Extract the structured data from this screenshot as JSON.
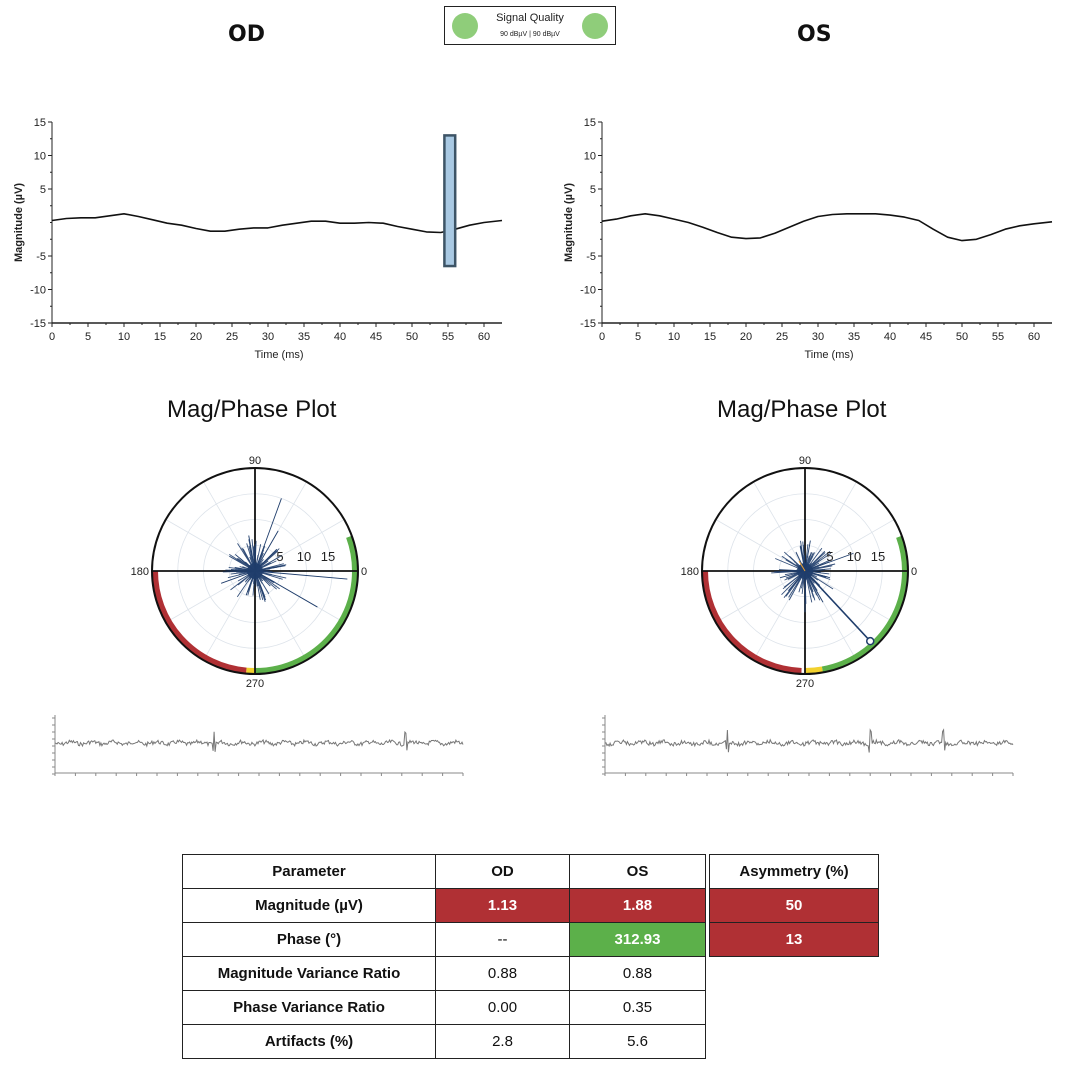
{
  "header": {
    "od_label": "OD",
    "os_label": "OS",
    "signal_quality": {
      "title": "Signal Quality",
      "values": "90 dBµV  |  90 dBµV",
      "indicator_color": "#8fcd7a"
    }
  },
  "mag_phase_title": "Mag/Phase Plot",
  "colors": {
    "red": "#b03034",
    "green": "#5cb04a",
    "yellow": "#f2d12e",
    "trace": "#1f3d6b"
  },
  "chart_data": [
    {
      "id": "od-waveform",
      "type": "line",
      "xlabel": "Time (ms)",
      "ylabel": "Magnitude (µV)",
      "xlim": [
        0,
        62.5
      ],
      "ylim": [
        -15,
        15
      ],
      "xticks": [
        "0",
        "5",
        "10",
        "15",
        "20",
        "25",
        "30",
        "35",
        "40",
        "45",
        "50",
        "55",
        "60"
      ],
      "yticks": [
        "15",
        "10",
        "5",
        "-5",
        "-10",
        "-15"
      ],
      "x": [
        0,
        2,
        4,
        6,
        8,
        10,
        12,
        14,
        16,
        18,
        20,
        22,
        24,
        26,
        28,
        30,
        32,
        34,
        36,
        38,
        40,
        42,
        44,
        46,
        48,
        50,
        52,
        54,
        56,
        58,
        60,
        62.5
      ],
      "y": [
        0.3,
        0.6,
        0.7,
        0.7,
        1.0,
        1.3,
        0.9,
        0.4,
        -0.1,
        -0.4,
        -0.9,
        -1.3,
        -1.3,
        -1.0,
        -0.8,
        -0.8,
        -0.4,
        -0.1,
        0.2,
        0.2,
        -0.1,
        -0.1,
        0.0,
        -0.1,
        -0.6,
        -1.0,
        -1.4,
        -1.5,
        -1.0,
        -0.4,
        0.0,
        0.3
      ],
      "marker": {
        "type": "band",
        "x": [
          54.5,
          56
        ],
        "y": [
          -6.5,
          13
        ]
      }
    },
    {
      "id": "os-waveform",
      "type": "line",
      "xlabel": "Time (ms)",
      "ylabel": "Magnitude (µV)",
      "xlim": [
        0,
        62.5
      ],
      "ylim": [
        -15,
        15
      ],
      "xticks": [
        "0",
        "5",
        "10",
        "15",
        "20",
        "25",
        "30",
        "35",
        "40",
        "45",
        "50",
        "55",
        "60"
      ],
      "yticks": [
        "15",
        "10",
        "5",
        "-5",
        "-10",
        "-15"
      ],
      "x": [
        0,
        2,
        4,
        6,
        8,
        10,
        12,
        14,
        16,
        18,
        20,
        22,
        24,
        26,
        28,
        30,
        32,
        34,
        36,
        38,
        40,
        42,
        44,
        46,
        48,
        50,
        52,
        54,
        56,
        58,
        60,
        62.5
      ],
      "y": [
        0.2,
        0.5,
        1.0,
        1.3,
        1.0,
        0.5,
        0.0,
        -0.7,
        -1.5,
        -2.2,
        -2.4,
        -2.3,
        -1.6,
        -0.7,
        0.2,
        0.9,
        1.2,
        1.3,
        1.3,
        1.3,
        1.1,
        0.8,
        0.3,
        -1.0,
        -2.2,
        -2.7,
        -2.5,
        -1.8,
        -1.0,
        -0.5,
        -0.2,
        0.1
      ]
    },
    {
      "id": "od-polar",
      "type": "polar",
      "title": "Mag/Phase Plot",
      "angle_labels": [
        "90",
        "180",
        "0",
        "270"
      ],
      "radial_labels": [
        "5",
        "10",
        "15"
      ],
      "rmax": 20,
      "arcs": [
        {
          "color": "green",
          "from_deg": -90,
          "to_deg": 20
        },
        {
          "color": "yellow",
          "from_deg": -95,
          "to_deg": -90
        },
        {
          "color": "red",
          "from_deg": 180,
          "to_deg": 265
        }
      ],
      "spikes_deg_mag": [
        [
          70,
          15
        ],
        [
          355,
          18
        ],
        [
          330,
          14
        ],
        [
          60,
          9
        ],
        [
          100,
          7
        ],
        [
          290,
          6
        ],
        [
          10,
          6
        ],
        [
          200,
          7
        ],
        [
          250,
          5
        ],
        [
          140,
          5
        ],
        [
          45,
          6
        ],
        [
          170,
          4
        ]
      ]
    },
    {
      "id": "os-polar",
      "type": "polar",
      "title": "Mag/Phase Plot",
      "angle_labels": [
        "90",
        "180",
        "0",
        "270"
      ],
      "radial_labels": [
        "5",
        "10",
        "15"
      ],
      "rmax": 20,
      "arcs": [
        {
          "color": "green",
          "from_deg": -80,
          "to_deg": 20
        },
        {
          "color": "yellow",
          "from_deg": -90,
          "to_deg": -80
        },
        {
          "color": "red",
          "from_deg": 180,
          "to_deg": 268
        }
      ],
      "spikes_deg_mag": [
        [
          20,
          10
        ],
        [
          80,
          6
        ],
        [
          300,
          7
        ],
        [
          270,
          8
        ],
        [
          195,
          5
        ],
        [
          230,
          5
        ],
        [
          100,
          5
        ],
        [
          345,
          5
        ]
      ],
      "vector": {
        "phase_deg": 312.93,
        "magnitude_to_edge": 20
      }
    },
    {
      "id": "od-raw",
      "type": "line",
      "events": [
        0.39,
        0.86
      ]
    },
    {
      "id": "os-raw",
      "type": "line",
      "events": [
        0.3,
        0.65,
        0.83
      ]
    }
  ],
  "table": {
    "headers": [
      "Parameter",
      "OD",
      "OS"
    ],
    "rows": [
      {
        "label": "Magnitude (µV)",
        "od": "1.13",
        "os": "1.88",
        "od_status": "red",
        "os_status": "red"
      },
      {
        "label": "Phase (°)",
        "od": "--",
        "os": "312.93",
        "od_status": "",
        "os_status": "green"
      },
      {
        "label": "Magnitude Variance Ratio",
        "od": "0.88",
        "os": "0.88",
        "od_status": "",
        "os_status": ""
      },
      {
        "label": "Phase Variance Ratio",
        "od": "0.00",
        "os": "0.35",
        "od_status": "",
        "os_status": ""
      },
      {
        "label": "Artifacts (%)",
        "od": "2.8",
        "os": "5.6",
        "od_status": "",
        "os_status": ""
      }
    ]
  },
  "asymmetry": {
    "header": "Asymmetry (%)",
    "values": [
      "50",
      "13"
    ]
  }
}
